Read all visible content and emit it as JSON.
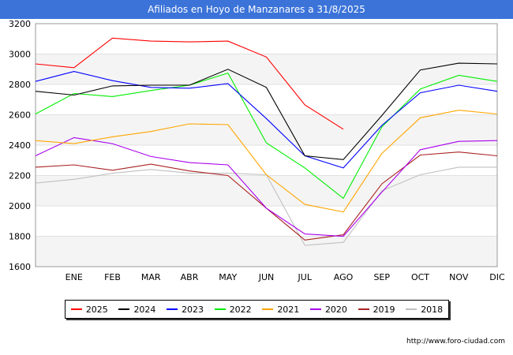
{
  "title": "Afiliados en Hoyo de Manzanares a 31/8/2025",
  "footer": "http://www.foro-ciudad.com",
  "chart_data": {
    "type": "line",
    "categories": [
      "",
      "ENE",
      "FEB",
      "MAR",
      "ABR",
      "MAY",
      "JUN",
      "JUL",
      "AGO",
      "SEP",
      "OCT",
      "NOV",
      "DIC"
    ],
    "ylim": [
      1600,
      3200
    ],
    "yticks": [
      1600,
      1800,
      2000,
      2200,
      2400,
      2600,
      2800,
      3000,
      3200
    ],
    "grid": "horizontal bands",
    "legend_position": "bottom",
    "series": [
      {
        "name": "2025",
        "color": "#ff0000",
        "values": [
          2935,
          2910,
          3105,
          3085,
          3080,
          3085,
          2980,
          2665,
          2505,
          null,
          null,
          null,
          null
        ]
      },
      {
        "name": "2024",
        "color": "#000000",
        "values": [
          2755,
          2730,
          2790,
          2795,
          2795,
          2900,
          2780,
          2330,
          2305,
          2595,
          2895,
          2940,
          2935
        ]
      },
      {
        "name": "2023",
        "color": "#0000ff",
        "values": [
          2820,
          2885,
          2825,
          2780,
          2775,
          2805,
          2575,
          2330,
          2250,
          2530,
          2745,
          2795,
          2755
        ]
      },
      {
        "name": "2022",
        "color": "#00ee00",
        "values": [
          2605,
          2740,
          2720,
          2760,
          2795,
          2875,
          2415,
          2250,
          2050,
          2520,
          2770,
          2860,
          2820
        ]
      },
      {
        "name": "2021",
        "color": "#ffa500",
        "values": [
          2430,
          2410,
          2455,
          2490,
          2540,
          2535,
          2205,
          2010,
          1960,
          2345,
          2580,
          2630,
          2605
        ]
      },
      {
        "name": "2020",
        "color": "#aa00ee",
        "values": [
          2330,
          2450,
          2410,
          2325,
          2285,
          2270,
          1985,
          1815,
          1800,
          2090,
          2370,
          2425,
          2430
        ]
      },
      {
        "name": "2019",
        "color": "#aa2222",
        "values": [
          2255,
          2270,
          2235,
          2275,
          2230,
          2200,
          1985,
          1775,
          1810,
          2145,
          2335,
          2355,
          2330
        ]
      },
      {
        "name": "2018",
        "color": "#c0c0c0",
        "values": [
          2150,
          2175,
          2215,
          2240,
          2215,
          2215,
          2205,
          1740,
          1760,
          2100,
          2205,
          2255,
          2255
        ]
      }
    ]
  }
}
